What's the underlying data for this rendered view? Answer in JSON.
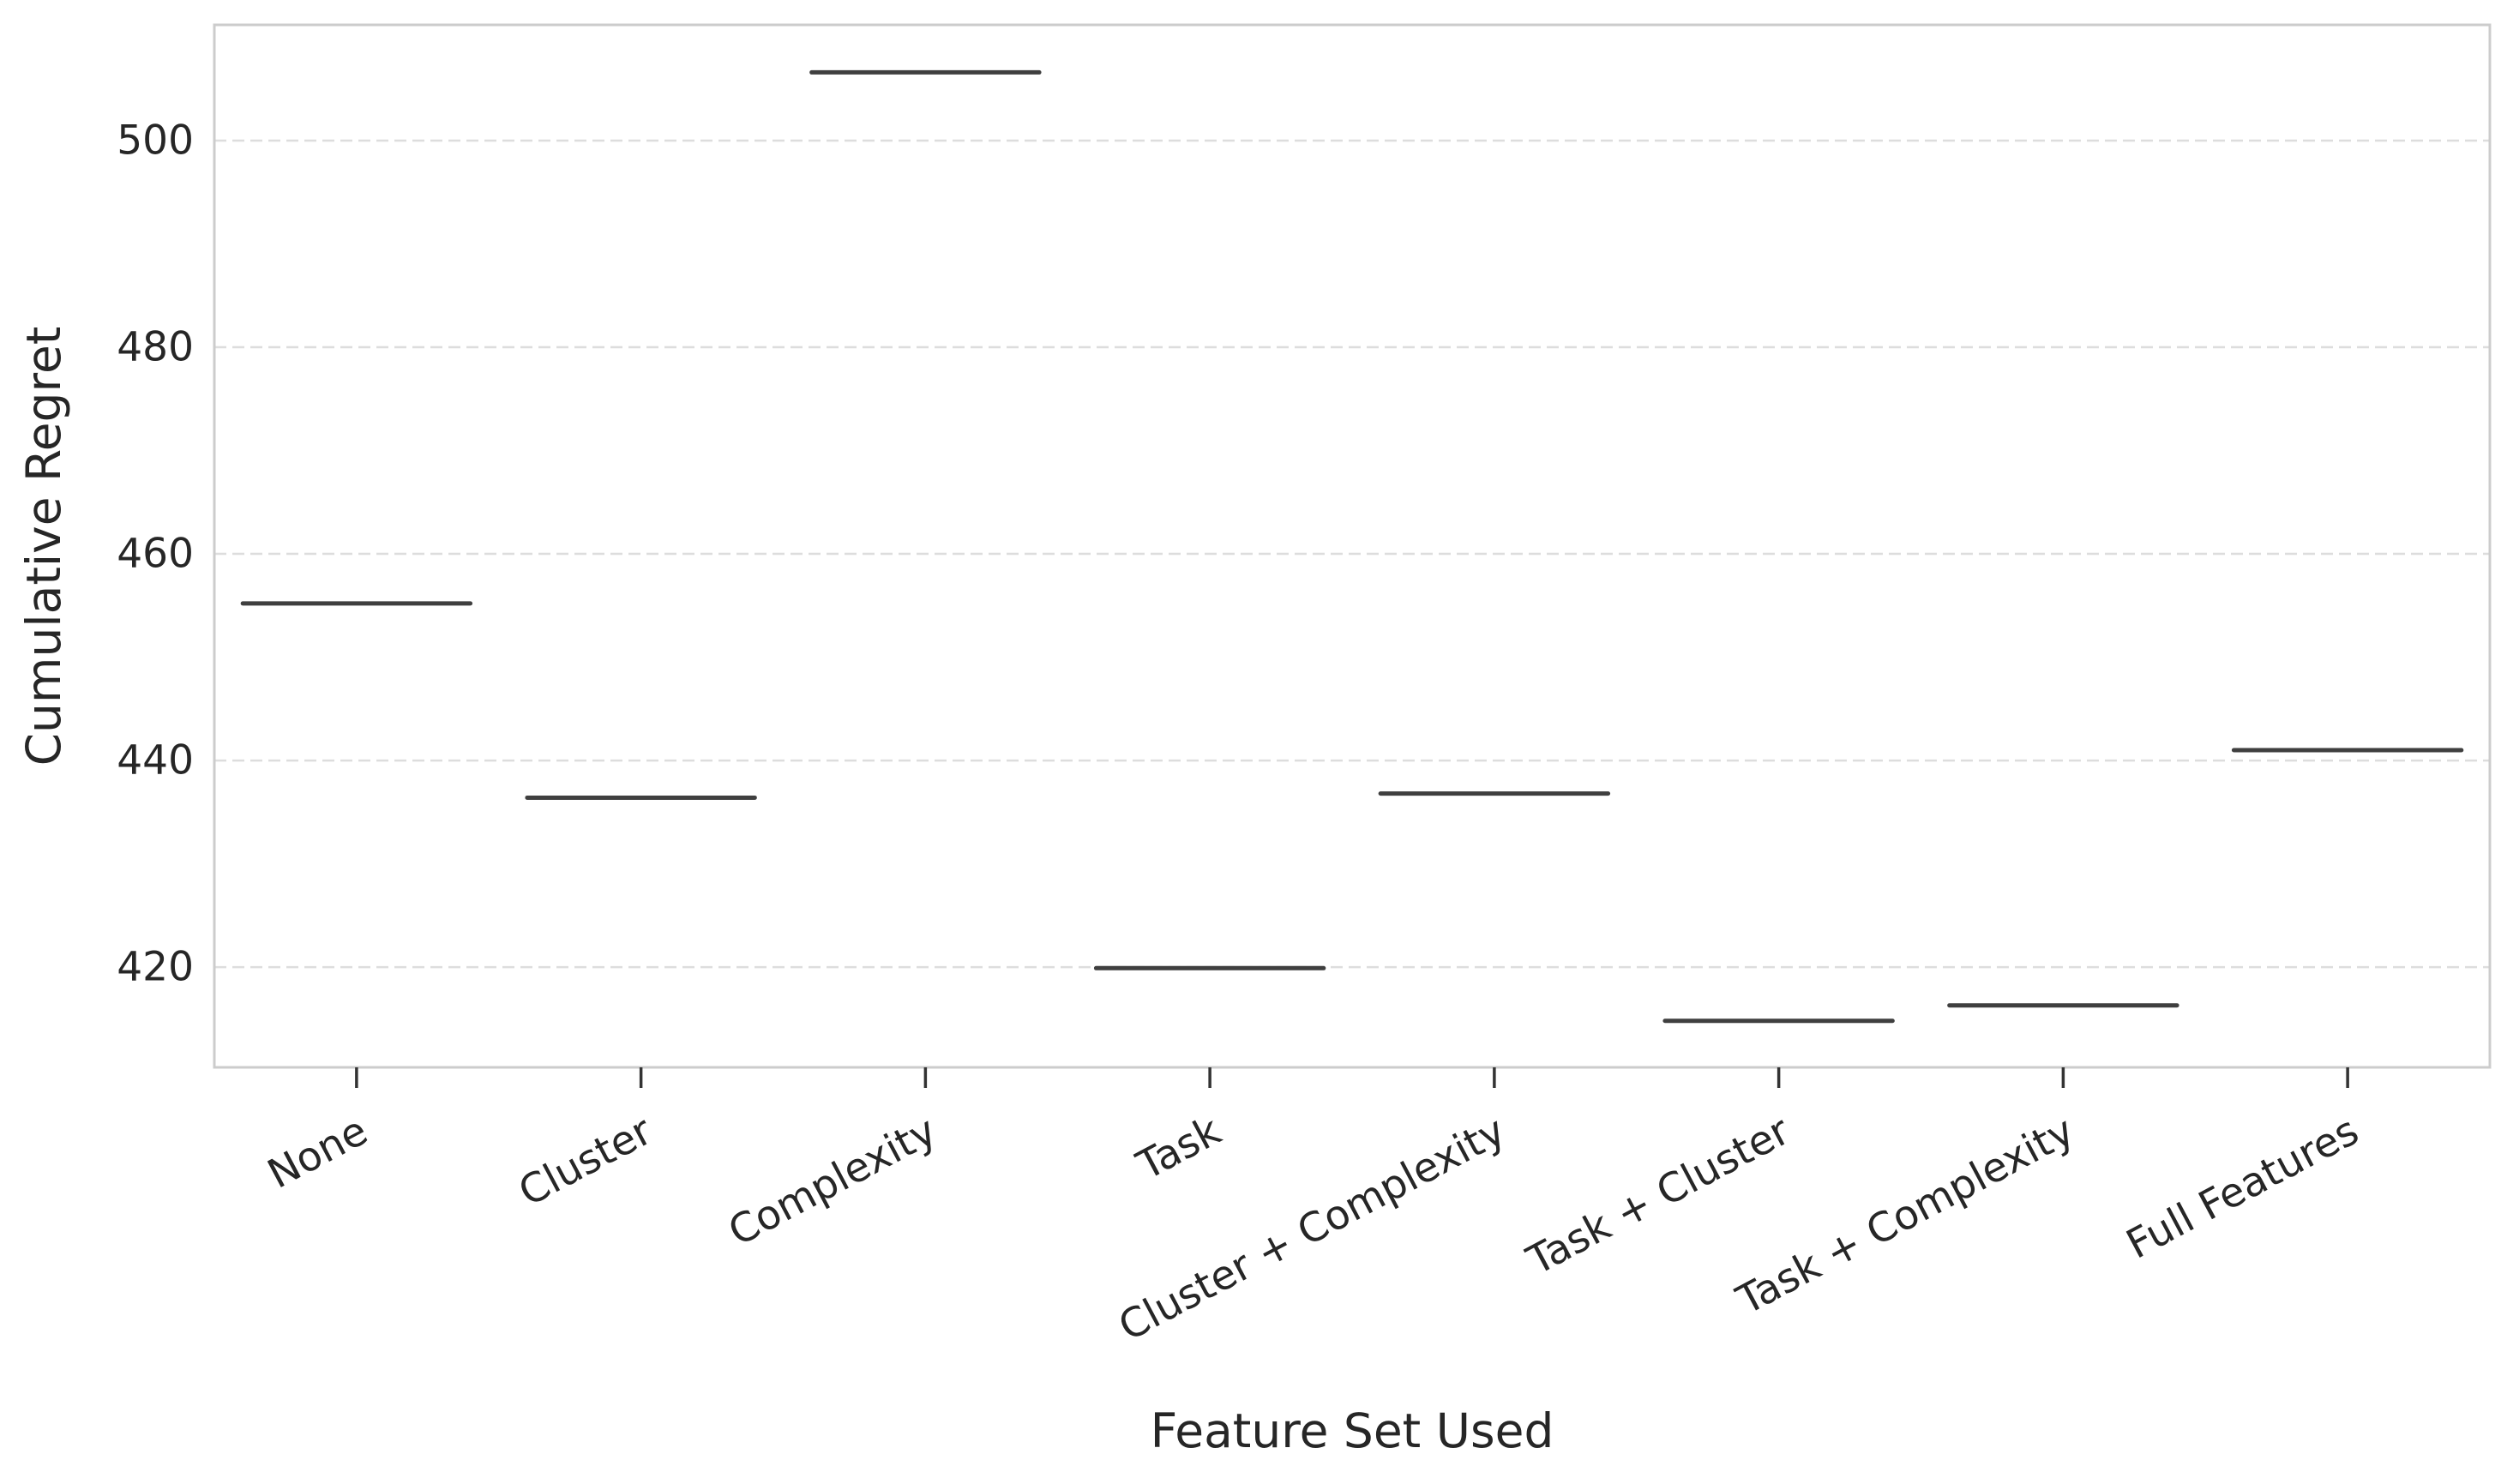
{
  "chart_data": {
    "type": "box",
    "title": "",
    "xlabel": "Feature Set Used",
    "ylabel": "Cumulative Regret",
    "categories": [
      "None",
      "Cluster",
      "Complexity",
      "Task",
      "Cluster + Complexity",
      "Task + Cluster",
      "Task + Complexity",
      "Full Features"
    ],
    "values": [
      455.2,
      436.4,
      506.6,
      419.9,
      436.8,
      414.8,
      416.3,
      441.0
    ],
    "yticks": [
      420,
      440,
      460,
      480,
      500
    ],
    "ylim": [
      410.3,
      511.2
    ],
    "grid": "y-dashed",
    "colors": {
      "box": "#3f3f3f",
      "grid": "#dddddd",
      "frame": "#cccccc",
      "text": "#262626"
    }
  }
}
